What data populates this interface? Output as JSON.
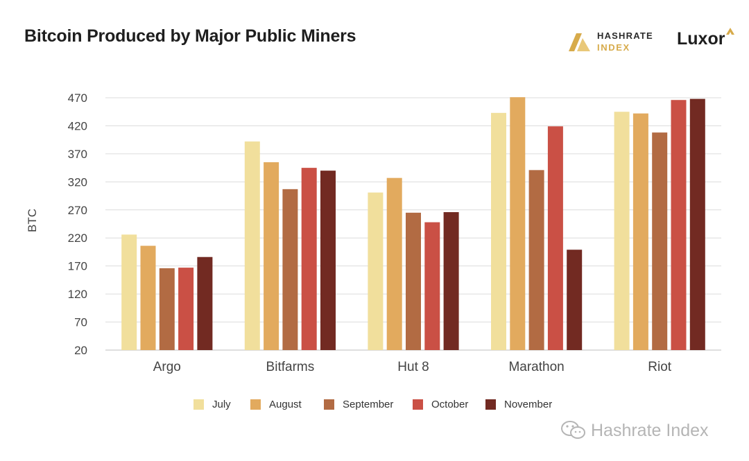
{
  "header": {
    "title": "Bitcoin Produced by Major Public Miners",
    "logo_line1": "HASHRATE",
    "logo_line2": "INDEX",
    "luxor": "Luxor"
  },
  "watermark": {
    "text": "Hashrate Index",
    "icon": "wechat-icon"
  },
  "colors": {
    "July": "#f1df9c",
    "August": "#e2aa5e",
    "September": "#b26b43",
    "October": "#ca5045",
    "November": "#722a22",
    "gold": "#d7ab4b",
    "grid": "#dcdcdc"
  },
  "chart_data": {
    "type": "bar",
    "title": "Bitcoin Produced by Major Public Miners",
    "xlabel": "",
    "ylabel": "BTC",
    "ylim": [
      20,
      470
    ],
    "yticks": [
      20,
      70,
      120,
      170,
      220,
      270,
      320,
      370,
      420,
      470
    ],
    "grid": true,
    "legend_position": "bottom-center",
    "categories": [
      "Argo",
      "Bitfarms",
      "Hut 8",
      "Marathon",
      "Riot"
    ],
    "series": [
      {
        "name": "July",
        "values": [
          226,
          392,
          301,
          443,
          445
        ]
      },
      {
        "name": "August",
        "values": [
          206,
          355,
          327,
          471,
          442
        ]
      },
      {
        "name": "September",
        "values": [
          166,
          307,
          265,
          341,
          408
        ]
      },
      {
        "name": "October",
        "values": [
          167,
          345,
          248,
          419,
          466
        ]
      },
      {
        "name": "November",
        "values": [
          186,
          340,
          266,
          199,
          468
        ]
      }
    ]
  }
}
